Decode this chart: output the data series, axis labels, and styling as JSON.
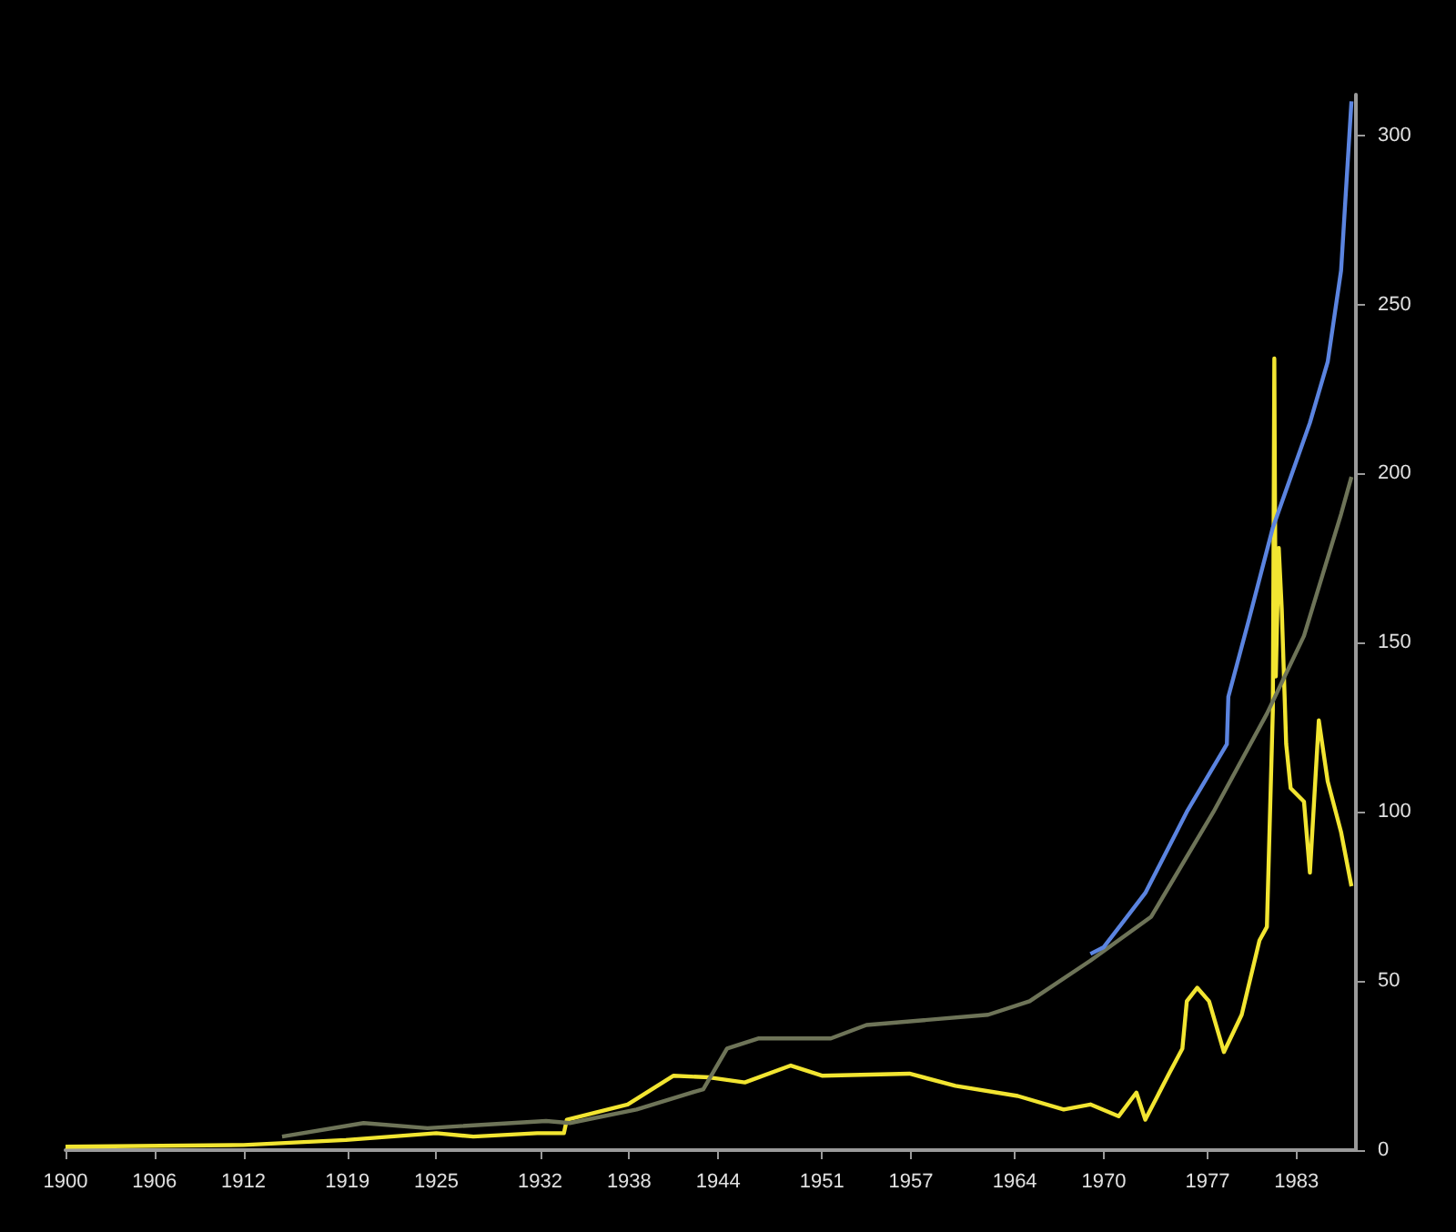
{
  "chart_data": {
    "type": "line",
    "xlim": [
      1900,
      1987
    ],
    "xticks": [
      1900,
      1906,
      1912,
      1919,
      1925,
      1932,
      1938,
      1944,
      1951,
      1957,
      1964,
      1970,
      1977,
      1983
    ],
    "ylim": [
      0,
      312
    ],
    "yticks": [
      0,
      50,
      100,
      150,
      200,
      250,
      300
    ],
    "grid": false,
    "marker": "none",
    "line_style": "solid",
    "series": [
      {
        "color": "#f2e531",
        "x": [
          1900,
          1912,
          1918.9,
          1925,
          1927.5,
          1931.8,
          1933.6,
          1933.8,
          1937.9,
          1941,
          1943.4,
          1945.8,
          1948.9,
          1951,
          1956.9,
          1960,
          1964.2,
          1967.3,
          1969.1,
          1971,
          1972.2,
          1972.8,
          1974.4,
          1975.3,
          1975.6,
          1976.3,
          1977.1,
          1978.1,
          1979.3,
          1980.5,
          1981,
          1981.4,
          1981.5,
          1981.6,
          1981.8,
          1982,
          1982.3,
          1982.6,
          1983.5,
          1983.9,
          1984.5,
          1985.1,
          1986,
          1986.7
        ],
        "values": [
          1,
          1.5,
          3,
          5,
          4,
          5,
          5,
          9,
          13.5,
          22,
          21.5,
          20,
          25,
          22,
          22.6,
          19,
          16,
          12,
          13.5,
          10,
          17,
          9,
          22.6,
          30,
          44,
          48,
          44,
          29,
          40,
          62,
          66,
          130,
          234,
          140,
          178,
          160,
          120,
          107,
          103,
          82,
          127,
          109,
          94,
          78
        ]
      },
      {
        "color": "#6e7458",
        "x": [
          1914.6,
          1920.1,
          1924.4,
          1932.4,
          1934,
          1938.5,
          1942.2,
          1943,
          1944.6,
          1946.7,
          1951.6,
          1954,
          1962.2,
          1965,
          1969.1,
          1973.2,
          1977.4,
          1981,
          1983.5,
          1986,
          1986.7
        ],
        "values": [
          4,
          8,
          6.5,
          8.6,
          8,
          12,
          17,
          18,
          30,
          33,
          33,
          37,
          40,
          44,
          56,
          69,
          100,
          129,
          152,
          188,
          199
        ]
      },
      {
        "color": "#5b84e0",
        "x": [
          1969.1,
          1970,
          1972.8,
          1975.6,
          1978.3,
          1978.4,
          1979.8,
          1981.4,
          1983.9,
          1985.1,
          1986,
          1986.7
        ],
        "values": [
          58,
          60,
          76,
          100,
          120,
          134,
          157,
          184,
          215,
          233,
          260,
          310
        ]
      }
    ]
  }
}
